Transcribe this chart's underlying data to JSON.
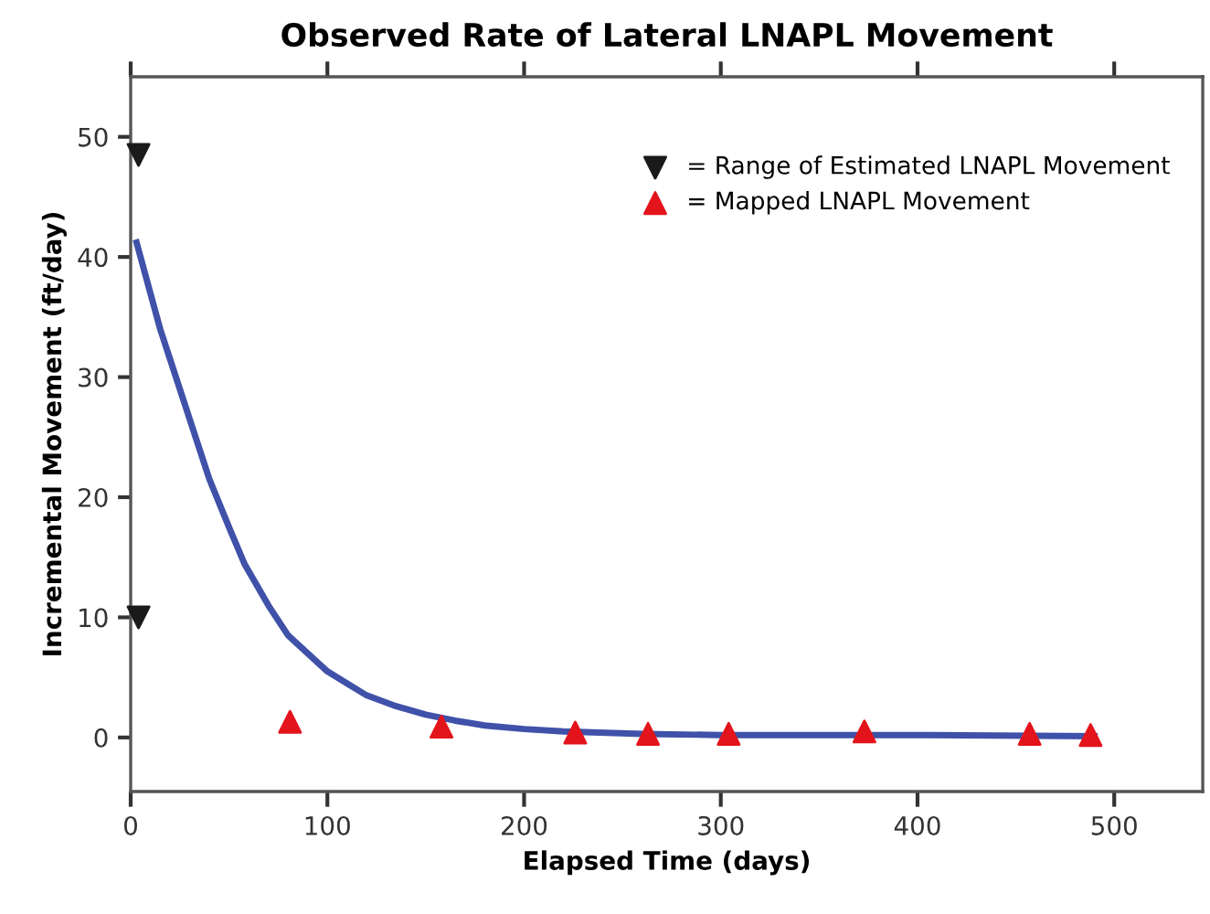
{
  "chart_data": {
    "type": "scatter",
    "title": "Observed Rate of Lateral LNAPL Movement",
    "xlabel": "Elapsed Time (days)",
    "ylabel": "Incremental Movement (ft/day)",
    "xlim": [
      0,
      545
    ],
    "xticks": [
      0,
      100,
      200,
      300,
      400,
      500
    ],
    "ylim": [
      -4.5,
      55
    ],
    "yticks": [
      0,
      10,
      20,
      30,
      40,
      50
    ],
    "grid": false,
    "legend": "top right",
    "series": [
      {
        "type": "line",
        "color": "#3f51a8",
        "marker": "none",
        "line_style": "solid",
        "x": [
          3,
          5,
          10,
          15,
          20,
          27,
          30,
          40,
          50,
          58,
          70,
          80,
          90,
          100,
          110,
          120,
          135,
          150,
          165,
          180,
          200,
          220,
          260,
          300,
          400,
          490
        ],
        "values": [
          41.2,
          40,
          37,
          34,
          31.5,
          28,
          26.5,
          21.5,
          17.5,
          14.4,
          11,
          8.5,
          7,
          5.5,
          4.5,
          3.5,
          2.6,
          1.9,
          1.4,
          1.0,
          0.7,
          0.5,
          0.3,
          0.2,
          0.2,
          0.1
        ]
      },
      {
        "name": "= Range of Estimated LNAPL Movement",
        "color": "#1a1a1a",
        "marker": "triangle_down",
        "x": [
          4,
          4
        ],
        "values": [
          48.5,
          10
        ]
      },
      {
        "name": "= Mapped LNAPL Movement",
        "color": "#e3141b",
        "marker": "triangle",
        "x": [
          81,
          158,
          226,
          263,
          304,
          373,
          457,
          488
        ],
        "values": [
          1.3,
          0.9,
          0.4,
          0.3,
          0.3,
          0.5,
          0.3,
          0.2
        ]
      }
    ]
  }
}
